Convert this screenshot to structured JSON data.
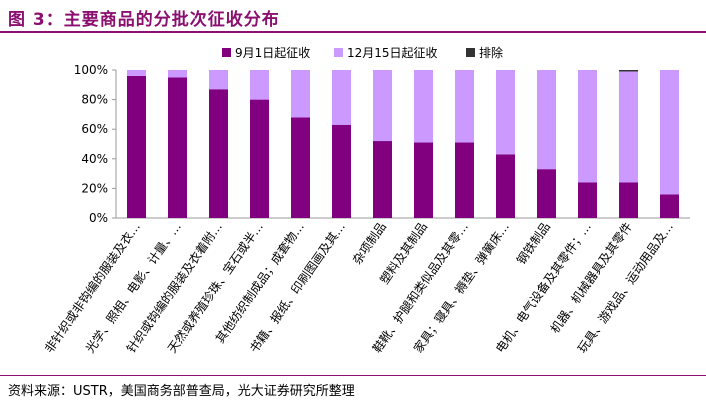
{
  "title": "图 3：主要商品的分批次征收分布",
  "source": "资料来源：USTR，美国商务部普查局，光大证券研究所整理",
  "chart_data": {
    "type": "bar",
    "stacked": true,
    "categories": [
      "非针织或非钩编的服装及衣…",
      "光学、照相、电影、计量、…",
      "针织或钩编的服装及衣着附…",
      "天然或养殖珍珠、宝石或半…",
      "其他纺织制成品；成套物…",
      "书籍、报纸、印刷图画及其…",
      "杂项制品",
      "塑料及其制品",
      "鞋靴、护腿和类似品及其零…",
      "家具；寝具、褥垫、弹簧床…",
      "钢铁制品",
      "电机、电气设备及其零件；…",
      "机器、机械器具及其零件",
      "玩具、游戏品、运动用品及…"
    ],
    "series": [
      {
        "name": "9月1日起征收",
        "color": "#800080",
        "values": [
          96,
          95,
          87,
          80,
          68,
          63,
          52,
          51,
          51,
          43,
          33,
          24,
          24,
          16
        ]
      },
      {
        "name": "12月15日起征收",
        "color": "#cc99ff",
        "values": [
          4,
          5,
          13,
          20,
          32,
          37,
          48,
          49,
          49,
          57,
          67,
          76,
          75,
          84
        ]
      },
      {
        "name": "排除",
        "color": "#333333",
        "values": [
          0,
          0,
          0,
          0,
          0,
          0,
          0,
          0,
          0,
          0,
          0,
          0,
          1,
          0
        ]
      }
    ],
    "yticks": [
      "0%",
      "20%",
      "40%",
      "60%",
      "80%",
      "100%"
    ],
    "ylim": [
      0,
      100
    ],
    "legend_position": "top-center",
    "grid": false
  }
}
